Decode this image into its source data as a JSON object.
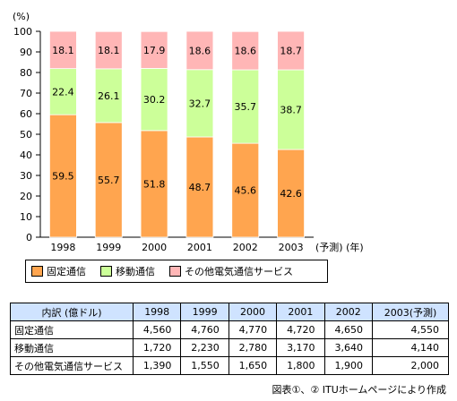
{
  "chart_data": {
    "type": "bar",
    "stacked": true,
    "unit_label": "(%)",
    "categories": [
      "1998",
      "1999",
      "2000",
      "2001",
      "2002",
      "2003"
    ],
    "x_suffix": "(予測) (年)",
    "ylim": [
      0,
      100
    ],
    "yticks": [
      0,
      10,
      20,
      30,
      40,
      50,
      60,
      70,
      80,
      90,
      100
    ],
    "grid": false,
    "series": [
      {
        "name": "固定通信",
        "color": "#ffa54f",
        "values": [
          59.5,
          55.7,
          51.8,
          48.7,
          45.6,
          42.6
        ]
      },
      {
        "name": "移動通信",
        "color": "#ccff99",
        "values": [
          22.4,
          26.1,
          30.2,
          32.7,
          35.7,
          38.7
        ]
      },
      {
        "name": "その他電気通信サービス",
        "color": "#ffb6b6",
        "values": [
          18.1,
          18.1,
          17.9,
          18.6,
          18.6,
          18.7
        ]
      }
    ]
  },
  "table": {
    "header": [
      "内訳 (億ドル)",
      "1998",
      "1999",
      "2000",
      "2001",
      "2002",
      "2003(予測)"
    ],
    "rows": [
      {
        "label": "固定通信",
        "values": [
          "4,560",
          "4,760",
          "4,770",
          "4,720",
          "4,650",
          "4,550"
        ]
      },
      {
        "label": "移動通信",
        "values": [
          "1,720",
          "2,230",
          "2,780",
          "3,170",
          "3,640",
          "4,140"
        ]
      },
      {
        "label": "その他電気通信サービス",
        "values": [
          "1,390",
          "1,550",
          "1,650",
          "1,800",
          "1,900",
          "2,000"
        ]
      }
    ]
  },
  "source": "図表①、② ITUホームページにより作成"
}
